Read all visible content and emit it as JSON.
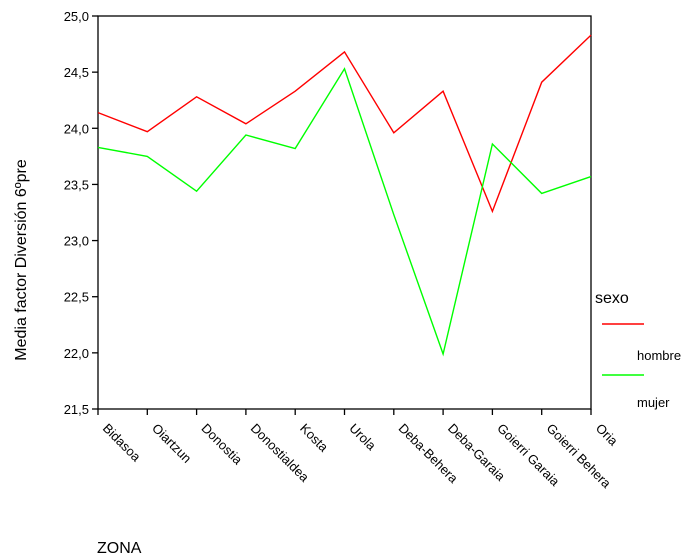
{
  "chart_data": {
    "type": "line",
    "title": "",
    "xlabel": "ZONA",
    "ylabel": "Media factor Diversión 6ºpre",
    "categories": [
      "Bidasoa",
      "Oiartzun",
      "Donostia",
      "Donostialdea",
      "Kosta",
      "Urola",
      "Deba-Behera",
      "Deba-Garaia",
      "Goierri Garaia",
      "Goierri Behera",
      "Oria"
    ],
    "ylim": [
      21.5,
      25.0
    ],
    "yticks": [
      "21,5",
      "22,0",
      "22,5",
      "23,0",
      "23,5",
      "24,0",
      "24,5",
      "25,0"
    ],
    "ytick_values": [
      21.5,
      22.0,
      22.5,
      23.0,
      23.5,
      24.0,
      24.5,
      25.0
    ],
    "grid": false,
    "legend": {
      "title": "sexo",
      "position": "right"
    },
    "series": [
      {
        "name": "hombre",
        "color": "#ff0000",
        "values": [
          24.14,
          23.97,
          24.28,
          24.04,
          24.33,
          24.68,
          23.96,
          24.33,
          23.26,
          24.41,
          24.83
        ]
      },
      {
        "name": "mujer",
        "color": "#00ff00",
        "values": [
          23.83,
          23.75,
          23.44,
          23.94,
          23.82,
          24.53,
          23.23,
          21.99,
          23.86,
          23.42,
          23.57
        ]
      }
    ]
  }
}
